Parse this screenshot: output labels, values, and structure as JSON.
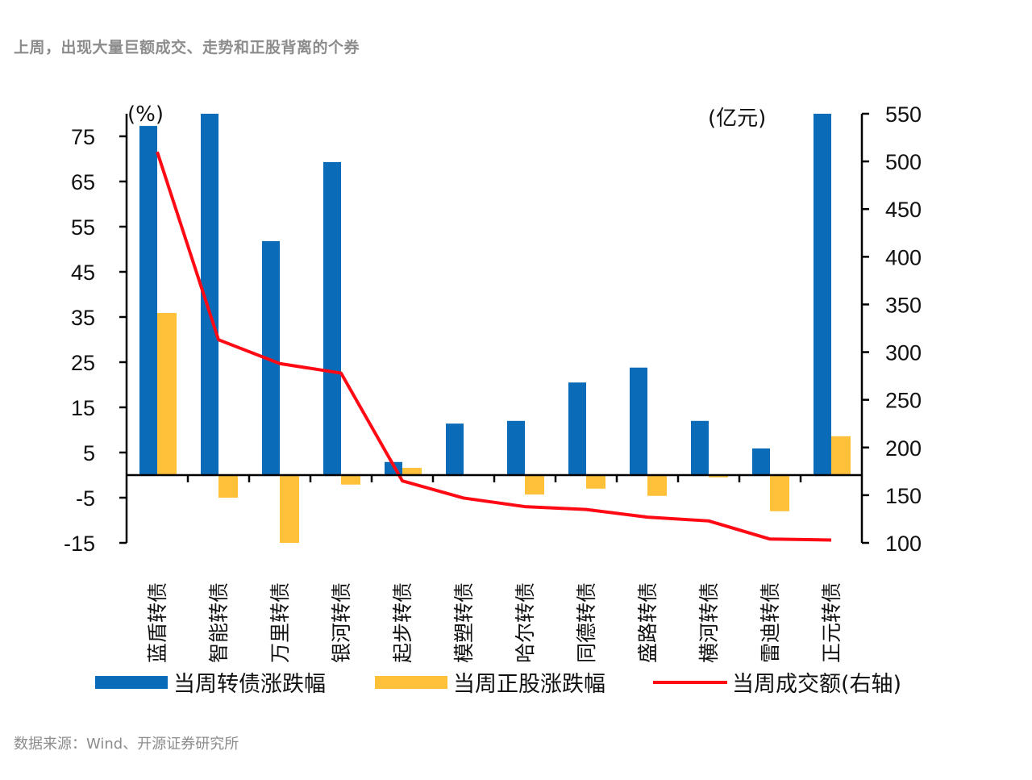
{
  "header": {
    "title": "上周，出现大量巨额成交、走势和正股背离的个券"
  },
  "footer": {
    "source": "数据来源：Wind、开源证券研究所"
  },
  "colors": {
    "bond": "#0a6bb8",
    "stock": "#ffc03a",
    "volume": "#ff0a14",
    "axis": "#000000"
  },
  "chart_data": {
    "type": "bar",
    "title": "",
    "categories": [
      "蓝盾转债",
      "智能转债",
      "万里转债",
      "银河转债",
      "起步转债",
      "模塑转债",
      "哈尔转债",
      "同德转债",
      "盛路转债",
      "横河转债",
      "雷迪转债",
      "正元转债"
    ],
    "series": [
      {
        "name": "当周转债涨跌幅",
        "type": "bar",
        "axis": "left",
        "color": "#0a6bb8",
        "values": [
          77.3,
          80.0,
          51.8,
          69.3,
          2.9,
          11.4,
          12.0,
          20.5,
          23.8,
          12.0,
          5.9,
          80.0
        ]
      },
      {
        "name": "当周正股涨跌幅",
        "type": "bar",
        "axis": "left",
        "color": "#ffc03a",
        "values": [
          35.9,
          -5.0,
          -15.4,
          -2.1,
          1.6,
          0.0,
          -4.3,
          -3.0,
          -4.6,
          -0.5,
          -8.0,
          8.6
        ]
      },
      {
        "name": "当周成交额(右轴)",
        "type": "line",
        "axis": "right",
        "color": "#ff0a14",
        "values": [
          510,
          313,
          288,
          278,
          165,
          147,
          138,
          135,
          127,
          123,
          104,
          103
        ]
      }
    ],
    "left_axis": {
      "unit": "(%)",
      "range": [
        -15,
        80
      ],
      "ticks": [
        75,
        65,
        55,
        45,
        35,
        25,
        15,
        5,
        -5,
        -15
      ],
      "tick_labels": [
        "75",
        "65",
        "55",
        "45",
        "35",
        "25",
        "15",
        "5",
        "-5",
        "-15"
      ]
    },
    "right_axis": {
      "unit": "(亿元)",
      "range": [
        100,
        550
      ],
      "ticks": [
        550,
        500,
        450,
        400,
        350,
        300,
        250,
        200,
        150,
        100
      ],
      "tick_labels": [
        "550",
        "500",
        "450",
        "400",
        "350",
        "300",
        "250",
        "200",
        "150",
        "100"
      ]
    },
    "xlabel": "",
    "ylabel": "",
    "grid": false,
    "legend_position": "bottom",
    "legend": [
      "当周转债涨跌幅",
      "当周正股涨跌幅",
      "当周成交额(右轴)"
    ],
    "notes": "Bars for 智能转债 and 正元转债 are clipped at the top of the plot (value exceeds axis max)."
  }
}
